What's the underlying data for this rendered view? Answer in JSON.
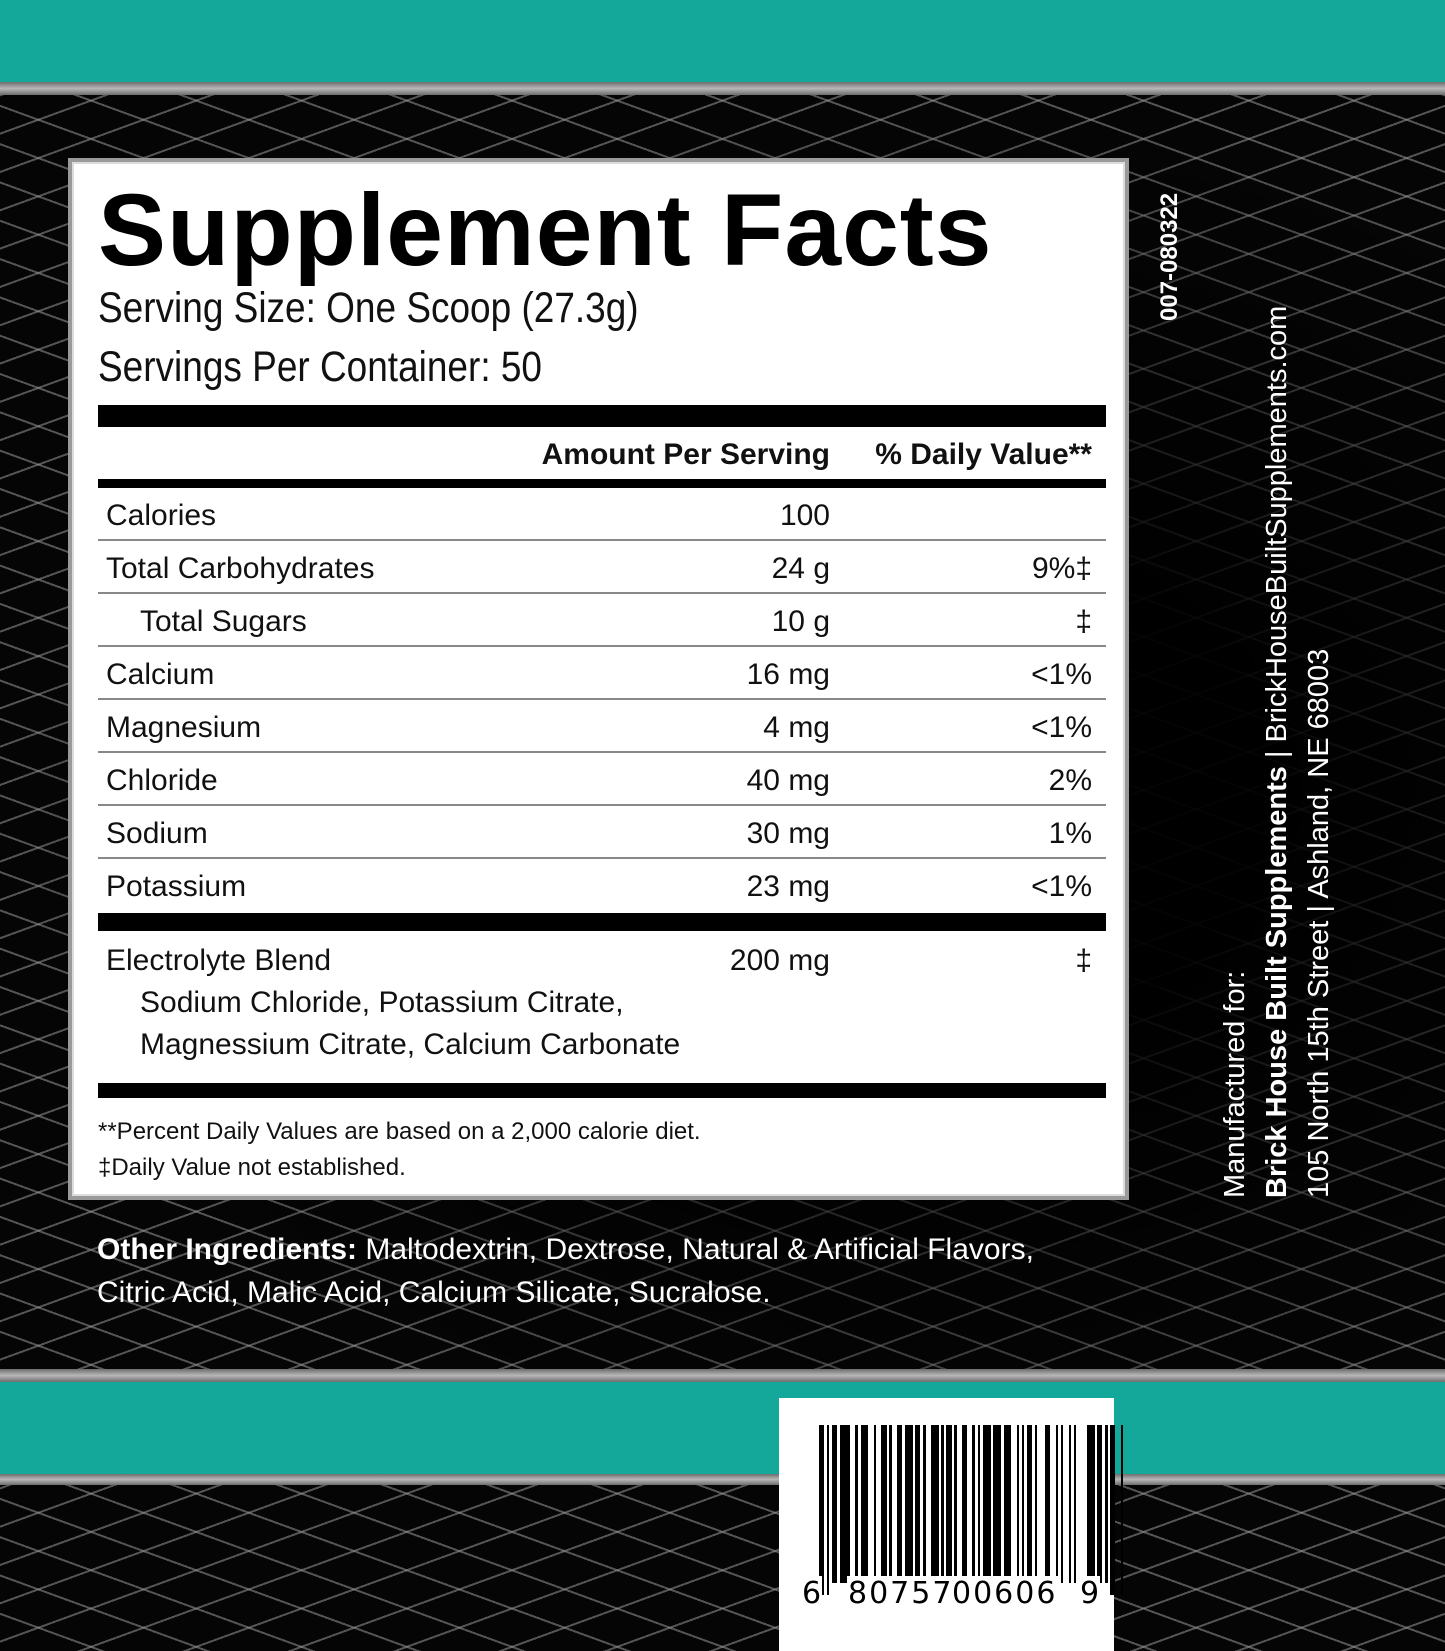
{
  "colors": {
    "teal": "#14a89b",
    "background": "#000000",
    "panel": "#ffffff"
  },
  "facts": {
    "title": "Supplement Facts",
    "serving_size": "Serving Size: One Scoop (27.3g)",
    "servings_per_container": "Servings Per Container: 50",
    "header": {
      "amount": "Amount Per Serving",
      "dv": "% Daily Value**"
    },
    "rows": [
      {
        "name": "Calories",
        "amount": "100",
        "dv": ""
      },
      {
        "name": "Total Carbohydrates",
        "amount": "24 g",
        "dv": "9%‡"
      },
      {
        "name": "Total Sugars",
        "amount": "10 g",
        "dv": "‡"
      },
      {
        "name": "Calcium",
        "amount": "16 mg",
        "dv": "<1%"
      },
      {
        "name": "Magnesium",
        "amount": "4 mg",
        "dv": "<1%"
      },
      {
        "name": "Chloride",
        "amount": "40 mg",
        "dv": "2%"
      },
      {
        "name": "Sodium",
        "amount": "30 mg",
        "dv": "1%"
      },
      {
        "name": "Potassium",
        "amount": "23 mg",
        "dv": "<1%"
      }
    ],
    "blend": {
      "name": "Electrolyte Blend",
      "amount": "200 mg",
      "dv": "‡",
      "line1": "Sodium Chloride, Potassium Citrate,",
      "line2": "Magnessium Citrate, Calcium Carbonate"
    },
    "footnote1": "**Percent Daily Values are based on a 2,000 calorie diet.",
    "footnote2": "‡Daily Value not established."
  },
  "other_ingredients": {
    "label": "Other Ingredients:",
    "text": " Maltodextrin, Dextrose, Natural & Artificial Flavors, Citric Acid, Malic Acid, Calcium Silicate, Sucralose."
  },
  "lot_code": "007-080322",
  "manufacturer": {
    "label": "Manufactured for:",
    "name": "Brick House Built Supplements",
    "website": "  |  BrickHouseBuiltSupplements.com",
    "address": "105 North 15th Street  |  Ashland, NE  68003"
  },
  "barcode": {
    "first": "6",
    "left": "80757",
    "right": "00606",
    "last": "9"
  }
}
